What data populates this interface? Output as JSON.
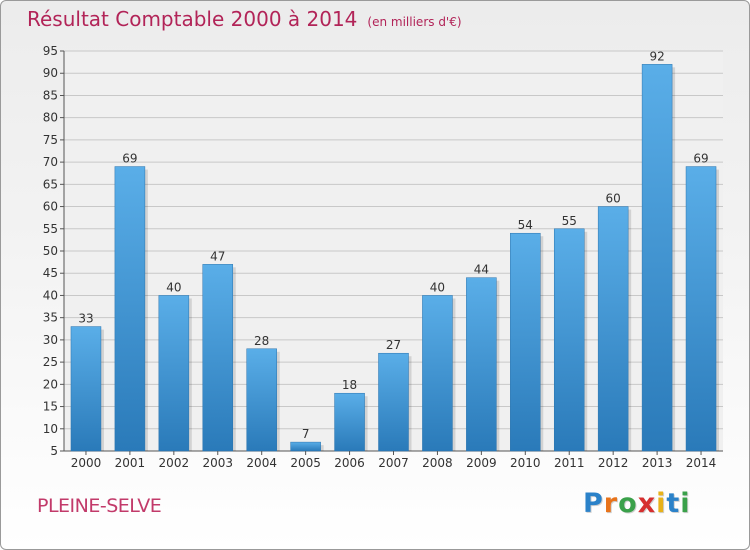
{
  "title": "Résultat Comptable 2000 à 2014",
  "unit_note": "(en milliers d'€)",
  "commune": "PLEINE-SELVE",
  "logo": {
    "letters": [
      {
        "char": "P",
        "color": "#2b82c9"
      },
      {
        "char": "r",
        "color": "#e8731a"
      },
      {
        "char": "o",
        "color": "#3aa14a"
      },
      {
        "char": "x",
        "color": "#d62f2f"
      },
      {
        "char": "i",
        "color": "#e8b21a"
      },
      {
        "char": "t",
        "color": "#2b82c9"
      },
      {
        "char": "i",
        "color": "#3aa14a"
      }
    ]
  },
  "colors": {
    "title": "#b22458",
    "bar_top": "#5aaee8",
    "bar_bottom": "#2a7ab9",
    "grid": "#c8c8c8"
  },
  "chart_data": {
    "type": "bar",
    "title": "Résultat Comptable 2000 à 2014",
    "unit": "(en milliers d'€)",
    "categories": [
      "2000",
      "2001",
      "2002",
      "2003",
      "2004",
      "2005",
      "2006",
      "2007",
      "2008",
      "2009",
      "2010",
      "2011",
      "2012",
      "2013",
      "2014"
    ],
    "values": [
      33,
      69,
      40,
      47,
      28,
      7,
      18,
      27,
      40,
      44,
      54,
      55,
      60,
      92,
      69
    ],
    "ylim": [
      5,
      95
    ],
    "yticks": [
      5,
      10,
      15,
      20,
      25,
      30,
      35,
      40,
      45,
      50,
      55,
      60,
      65,
      70,
      75,
      80,
      85,
      90,
      95
    ],
    "grid": true,
    "data_labels": true
  }
}
